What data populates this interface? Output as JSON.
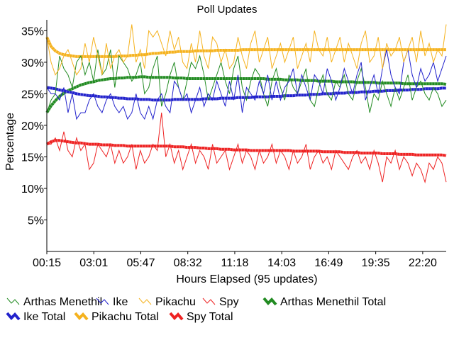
{
  "chart_data": {
    "type": "line",
    "title": "Poll Updates",
    "xlabel": "Hours Elapsed (95 updates)",
    "ylabel": "Percentage",
    "x_ticks": [
      "00:15",
      "03:01",
      "05:47",
      "08:32",
      "11:18",
      "14:03",
      "16:49",
      "19:35",
      "22:20"
    ],
    "y_ticks": [
      "5%",
      "10%",
      "15%",
      "20%",
      "25%",
      "30%",
      "35%"
    ],
    "ylim": [
      0,
      36.5
    ],
    "n_updates": 95,
    "legend_placement": "bottom",
    "series": [
      {
        "name": "Arthas Menethil",
        "color": "#228b22",
        "style": "thin",
        "values": [
          22,
          24,
          25,
          31,
          29,
          28,
          26,
          30,
          31,
          28,
          30,
          27,
          32,
          28,
          29,
          32,
          26,
          31,
          30,
          29,
          27,
          28,
          30,
          25,
          26,
          29,
          31,
          23,
          25,
          28,
          30,
          26,
          24,
          27,
          30,
          29,
          31,
          28,
          24,
          26,
          28,
          30,
          27,
          25,
          29,
          31,
          26,
          24,
          27,
          29,
          28,
          25,
          23,
          27,
          29,
          26,
          24,
          28,
          26,
          25,
          27,
          29,
          24,
          23,
          26,
          28,
          25,
          24,
          27,
          26,
          28,
          25,
          24,
          27,
          29,
          26,
          22,
          25,
          24,
          27,
          25,
          23,
          26,
          24,
          26,
          28,
          24,
          26,
          27,
          25,
          24,
          26,
          25,
          23,
          24
        ]
      },
      {
        "name": "Ike",
        "color": "#2222cc",
        "style": "thin",
        "values": [
          26,
          25,
          25,
          24,
          26,
          22,
          25,
          21,
          22,
          22,
          24,
          25,
          23,
          22,
          24,
          25,
          23,
          22,
          23,
          21,
          22,
          25,
          22,
          21,
          23,
          21,
          24,
          25,
          23,
          22,
          27,
          26,
          24,
          25,
          22,
          24,
          26,
          23,
          25,
          24,
          27,
          25,
          23,
          27,
          24,
          28,
          22,
          26,
          25,
          24,
          27,
          25,
          28,
          24,
          27,
          24,
          26,
          27,
          29,
          25,
          28,
          26,
          24,
          28,
          27,
          25,
          29,
          27,
          24,
          26,
          29,
          27,
          25,
          28,
          30,
          24,
          26,
          28,
          25,
          29,
          32,
          28,
          26,
          25,
          30,
          32,
          28,
          26,
          29,
          27,
          28,
          30,
          27,
          29,
          31
        ]
      },
      {
        "name": "Pikachu",
        "color": "#f5b21e",
        "style": "thin",
        "values": [
          34,
          30,
          28,
          29,
          31,
          32,
          30,
          28,
          29,
          33,
          30,
          34,
          31,
          28,
          33,
          29,
          31,
          32,
          30,
          31,
          36,
          30,
          32,
          29,
          35,
          34,
          35,
          33,
          31,
          35,
          32,
          34,
          30,
          29,
          33,
          30,
          35,
          31,
          29,
          34,
          33,
          30,
          32,
          29,
          30,
          34,
          31,
          29,
          33,
          35,
          30,
          32,
          34,
          29,
          31,
          33,
          30,
          32,
          34,
          29,
          31,
          33,
          30,
          35,
          32,
          31,
          34,
          30,
          32,
          34,
          30,
          33,
          31,
          29,
          33,
          35,
          30,
          31,
          34,
          29,
          33,
          31,
          32,
          34,
          30,
          32,
          34,
          30,
          35,
          31,
          33,
          30,
          32,
          31,
          36
        ]
      },
      {
        "name": "Spy",
        "color": "#ee2222",
        "style": "thin",
        "values": [
          17,
          17,
          18,
          16,
          19,
          16,
          15,
          18,
          16,
          17,
          13,
          14,
          17,
          16,
          15,
          17,
          14,
          16,
          14,
          15,
          17,
          13,
          16,
          14,
          15,
          17,
          16,
          22,
          15,
          17,
          14,
          16,
          13,
          15,
          17,
          14,
          16,
          15,
          13,
          17,
          14,
          15,
          16,
          13,
          15,
          17,
          14,
          16,
          15,
          13,
          16,
          14,
          15,
          17,
          14,
          16,
          15,
          13,
          16,
          14,
          15,
          17,
          13,
          15,
          16,
          14,
          15,
          13,
          16,
          15,
          14,
          13,
          15,
          16,
          14,
          15,
          13,
          16,
          14,
          11,
          15,
          14,
          16,
          13,
          15,
          14,
          12,
          14,
          13,
          11,
          14,
          13,
          15,
          14,
          11
        ]
      },
      {
        "name": "Arthas Menethil Total",
        "color": "#228b22",
        "style": "thick",
        "values": [
          22,
          23.1,
          23.9,
          24.6,
          25.1,
          25.5,
          25.8,
          26.1,
          26.4,
          26.6,
          26.8,
          26.9,
          27.1,
          27.2,
          27.3,
          27.4,
          27.4,
          27.5,
          27.5,
          27.6,
          27.6,
          27.6,
          27.7,
          27.7,
          27.6,
          27.6,
          27.6,
          27.6,
          27.6,
          27.6,
          27.5,
          27.5,
          27.5,
          27.4,
          27.4,
          27.4,
          27.4,
          27.4,
          27.4,
          27.4,
          27.4,
          27.4,
          27.4,
          27.4,
          27.4,
          27.4,
          27.4,
          27.4,
          27.4,
          27.4,
          27.4,
          27.4,
          27.3,
          27.3,
          27.3,
          27.3,
          27.2,
          27.2,
          27.2,
          27.2,
          27.1,
          27.1,
          27.1,
          27.1,
          27.0,
          27.0,
          27.0,
          27.0,
          26.9,
          26.9,
          26.9,
          26.9,
          26.9,
          26.8,
          26.8,
          26.8,
          26.8,
          26.8,
          26.7,
          26.7,
          26.7,
          26.7,
          26.7,
          26.7,
          26.6,
          26.6,
          26.6,
          26.6,
          26.6,
          26.6,
          26.6,
          26.6,
          26.6,
          26.6,
          26.5
        ]
      },
      {
        "name": "Ike Total",
        "color": "#2222cc",
        "style": "thick",
        "values": [
          26,
          25.9,
          25.8,
          25.6,
          25.5,
          25.3,
          25.2,
          25.0,
          24.9,
          24.8,
          24.7,
          24.7,
          24.6,
          24.5,
          24.5,
          24.4,
          24.4,
          24.3,
          24.3,
          24.2,
          24.2,
          24.2,
          24.1,
          24.1,
          24.1,
          24.0,
          24.0,
          24.0,
          24.0,
          24.0,
          24.1,
          24.1,
          24.1,
          24.1,
          24.1,
          24.1,
          24.1,
          24.2,
          24.2,
          24.2,
          24.2,
          24.3,
          24.3,
          24.3,
          24.3,
          24.4,
          24.4,
          24.4,
          24.4,
          24.5,
          24.5,
          24.5,
          24.5,
          24.6,
          24.6,
          24.6,
          24.7,
          24.7,
          24.7,
          24.8,
          24.8,
          24.8,
          24.9,
          24.9,
          24.9,
          25.0,
          25.0,
          25.0,
          25.1,
          25.1,
          25.1,
          25.2,
          25.2,
          25.2,
          25.3,
          25.3,
          25.3,
          25.4,
          25.4,
          25.4,
          25.5,
          25.5,
          25.5,
          25.6,
          25.6,
          25.6,
          25.7,
          25.7,
          25.7,
          25.8,
          25.8,
          25.8,
          25.8,
          25.9,
          25.9
        ]
      },
      {
        "name": "Pikachu Total",
        "color": "#f5b21e",
        "style": "thick",
        "values": [
          34,
          32.5,
          31.8,
          31.4,
          31.2,
          31.1,
          31.0,
          30.9,
          30.9,
          30.9,
          30.9,
          30.9,
          30.9,
          30.9,
          30.9,
          30.9,
          30.9,
          31.0,
          31.0,
          31.0,
          31.1,
          31.1,
          31.2,
          31.2,
          31.3,
          31.4,
          31.4,
          31.5,
          31.5,
          31.6,
          31.6,
          31.7,
          31.7,
          31.7,
          31.7,
          31.8,
          31.8,
          31.8,
          31.8,
          31.8,
          31.9,
          31.9,
          31.9,
          31.9,
          31.9,
          31.9,
          32.0,
          32.0,
          32.0,
          32.0,
          32.0,
          32.0,
          32.0,
          32.0,
          32.0,
          32.0,
          32.0,
          32.0,
          32.0,
          32.0,
          32.0,
          32.0,
          32.0,
          32.0,
          32.0,
          32.0,
          32.0,
          32.0,
          32.0,
          32.0,
          32.0,
          32.0,
          32.0,
          32.0,
          32.0,
          32.0,
          32.0,
          32.0,
          32.0,
          32.0,
          32.0,
          32.0,
          32.0,
          32.0,
          32.0,
          32.0,
          32.0,
          32.0,
          32.0,
          32.0,
          32.0,
          32.0,
          32.0,
          32.0,
          32.0
        ]
      },
      {
        "name": "Spy Total",
        "color": "#ee2222",
        "style": "thick",
        "values": [
          17,
          17.4,
          17.6,
          17.6,
          17.5,
          17.4,
          17.3,
          17.2,
          17.2,
          17.1,
          17.0,
          17.0,
          17.0,
          16.9,
          16.9,
          16.9,
          16.8,
          16.8,
          16.8,
          16.7,
          16.7,
          16.7,
          16.7,
          16.7,
          16.7,
          16.7,
          16.7,
          16.7,
          16.7,
          16.7,
          16.6,
          16.6,
          16.6,
          16.5,
          16.5,
          16.5,
          16.4,
          16.4,
          16.3,
          16.3,
          16.3,
          16.2,
          16.2,
          16.2,
          16.1,
          16.1,
          16.1,
          16.1,
          16.0,
          16.0,
          16.0,
          16.0,
          16.0,
          16.0,
          16.0,
          16.0,
          16.0,
          16.0,
          15.9,
          15.9,
          15.9,
          15.9,
          15.9,
          15.9,
          15.9,
          15.8,
          15.8,
          15.8,
          15.8,
          15.8,
          15.7,
          15.7,
          15.7,
          15.7,
          15.6,
          15.6,
          15.6,
          15.6,
          15.6,
          15.5,
          15.5,
          15.5,
          15.5,
          15.4,
          15.4,
          15.4,
          15.4,
          15.3,
          15.3,
          15.3,
          15.3,
          15.3,
          15.3,
          15.3,
          15.2
        ]
      }
    ]
  }
}
